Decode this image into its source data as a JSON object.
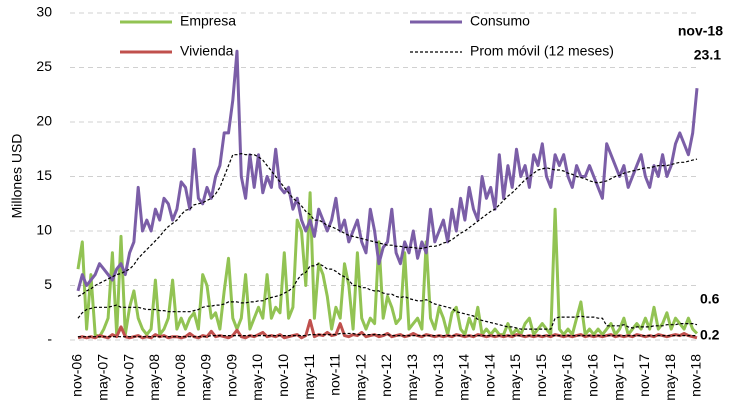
{
  "chart_data": {
    "type": "line",
    "y_label": "Millones USD",
    "categories": [
      "nov-06",
      null,
      null,
      null,
      null,
      null,
      "may-07",
      null,
      null,
      null,
      null,
      null,
      "nov-07",
      null,
      null,
      null,
      null,
      null,
      "may-08",
      null,
      null,
      null,
      null,
      null,
      "nov-08",
      null,
      null,
      null,
      null,
      null,
      "may-09",
      null,
      null,
      null,
      null,
      null,
      "nov-09",
      null,
      null,
      null,
      null,
      null,
      "may-10",
      null,
      null,
      null,
      null,
      null,
      "nov-10",
      null,
      null,
      null,
      null,
      null,
      "may-11",
      null,
      null,
      null,
      null,
      null,
      "nov-11",
      null,
      null,
      null,
      null,
      null,
      "may-12",
      null,
      null,
      null,
      null,
      null,
      "nov-12",
      null,
      null,
      null,
      null,
      null,
      "may-13",
      null,
      null,
      null,
      null,
      null,
      "nov-13",
      null,
      null,
      null,
      null,
      null,
      "may-14",
      null,
      null,
      null,
      null,
      null,
      "nov-14",
      null,
      null,
      null,
      null,
      null,
      "may-15",
      null,
      null,
      null,
      null,
      null,
      "nov-15",
      null,
      null,
      null,
      null,
      null,
      "may-16",
      null,
      null,
      null,
      null,
      null,
      "nov-16",
      null,
      null,
      null,
      null,
      null,
      "may-17",
      null,
      null,
      null,
      null,
      null,
      "nov-17",
      null,
      null,
      null,
      null,
      null,
      "may-18",
      null,
      null,
      null,
      null,
      null,
      "nov-18"
    ],
    "series": [
      {
        "name": "Empresa",
        "color": "#92c353",
        "values": [
          6.5,
          9,
          1,
          6,
          0.5,
          0.3,
          1,
          2,
          8,
          0.5,
          9.5,
          0.5,
          3,
          4.5,
          2,
          1,
          0.5,
          1,
          5.5,
          0.5,
          1,
          2,
          5.5,
          1,
          2,
          1,
          2,
          2.5,
          1,
          6,
          5,
          2,
          2.5,
          1,
          4.5,
          7.5,
          2,
          1,
          2,
          6,
          1,
          2,
          3,
          2,
          6,
          2,
          3,
          2.5,
          8,
          2,
          3,
          11,
          10,
          5,
          13.5,
          2,
          7,
          6,
          4,
          1,
          3,
          2,
          7,
          5,
          1,
          8,
          2,
          1,
          2,
          1.5,
          9,
          2,
          4,
          3,
          1.5,
          2,
          8,
          1,
          1.5,
          2,
          1,
          9,
          2,
          1,
          3,
          2,
          0.5,
          2.5,
          3,
          1,
          0.5,
          2,
          1,
          3,
          0.5,
          1,
          0.5,
          1,
          0.5,
          0.5,
          1.5,
          0.5,
          1,
          0.5,
          1.5,
          2,
          0.5,
          1,
          1.5,
          1,
          0.5,
          12,
          1,
          0.5,
          1,
          0.5,
          2,
          3.5,
          0.5,
          1,
          0.5,
          1,
          0.5,
          1,
          1.5,
          0.5,
          1,
          2,
          0.5,
          1,
          1.5,
          1,
          2,
          1,
          3,
          1,
          1.5,
          2.5,
          1,
          2,
          1.5,
          1,
          2,
          1,
          0.6
        ]
      },
      {
        "name": "Consumo",
        "color": "#7b5ea7",
        "values": [
          4.5,
          6,
          5,
          5.5,
          6,
          7,
          6.5,
          6,
          5.5,
          6.5,
          7,
          6,
          8,
          9,
          14,
          10,
          11,
          10,
          12,
          11,
          13,
          12.5,
          11,
          12,
          14.5,
          14,
          12,
          17.5,
          13,
          12.5,
          14,
          13,
          15,
          16,
          19,
          19,
          22,
          26.5,
          15,
          13,
          17,
          14,
          17,
          13.5,
          15,
          14,
          17.5,
          14,
          13.5,
          14,
          12,
          13,
          11,
          10,
          11,
          9.5,
          12,
          11,
          10,
          11,
          13,
          10,
          11,
          9,
          10,
          11,
          9,
          8,
          12,
          10,
          7,
          8.5,
          9,
          12,
          8,
          7,
          9,
          8,
          10,
          7.5,
          9,
          8,
          12,
          9,
          10,
          11,
          9,
          12,
          10,
          13,
          11,
          14,
          12,
          11,
          15,
          13,
          14,
          12,
          17,
          13,
          16,
          14,
          17.5,
          15,
          16,
          14,
          17,
          16,
          18,
          15,
          14,
          17,
          16,
          17,
          15,
          14,
          16,
          15,
          15,
          16,
          15,
          14,
          13,
          18,
          17,
          16,
          15,
          16,
          14,
          15,
          16,
          17,
          15,
          14,
          16,
          15,
          17,
          15,
          16,
          18,
          19,
          18,
          17,
          19,
          23.1
        ]
      },
      {
        "name": "Vivienda",
        "color": "#c0504d",
        "values": [
          0.2,
          0.3,
          0.2,
          0.3,
          0.2,
          0.4,
          0.3,
          0.2,
          0.5,
          0.3,
          1.2,
          0.3,
          0.2,
          0.3,
          0.4,
          0.2,
          0.3,
          0.2,
          0.5,
          0.3,
          0.4,
          0.2,
          0.3,
          0.3,
          0.2,
          0.3,
          0.6,
          0.3,
          0.2,
          0.4,
          0.3,
          0.8,
          0.3,
          0.4,
          0.3,
          0.2,
          0.4,
          0.9,
          0.3,
          0.2,
          0.4,
          0.3,
          0.5,
          0.7,
          0.3,
          0.4,
          0.3,
          0.5,
          0.2,
          0.3,
          0.4,
          0.5,
          0.2,
          0.4,
          1.8,
          0.3,
          0.5,
          0.4,
          0.7,
          0.4,
          0.5,
          1.5,
          0.4,
          0.3,
          0.5,
          0.4,
          0.7,
          0.3,
          0.4,
          0.5,
          0.3,
          0.4,
          0.6,
          0.3,
          0.4,
          0.5,
          0.3,
          0.4,
          0.6,
          0.4,
          0.3,
          0.5,
          0.4,
          0.3,
          0.4,
          0.3,
          0.4,
          0.3,
          0.5,
          0.4,
          0.3,
          0.4,
          0.3,
          0.5,
          0.4,
          0.3,
          0.4,
          0.3,
          0.4,
          0.3,
          0.4,
          0.3,
          0.5,
          0.4,
          0.3,
          0.4,
          0.3,
          0.4,
          0.3,
          0.4,
          0.3,
          0.5,
          0.4,
          0.3,
          0.4,
          0.3,
          0.4,
          0.5,
          0.3,
          0.4,
          0.3,
          0.4,
          0.3,
          0.4,
          0.5,
          0.3,
          0.4,
          0.3,
          0.4,
          0.3,
          0.5,
          0.4,
          0.3,
          0.4,
          0.3,
          0.5,
          0.4,
          0.3,
          0.4,
          0.5,
          0.4,
          0.6,
          0.4,
          0.3,
          0.2
        ]
      }
    ],
    "moving_average": {
      "name": "Prom móvil  (12 meses)",
      "color": "#000000",
      "series": [
        {
          "values": [
            2,
            2.5,
            2.8,
            2.9,
            3,
            3,
            3,
            3,
            3.1,
            3.2,
            3,
            3,
            3,
            3,
            3,
            2.9,
            2.8,
            2.8,
            2.8,
            2.7,
            2.7,
            2.6,
            2.6,
            2.6,
            2.6,
            2.6,
            2.6,
            2.7,
            2.8,
            3,
            3.1,
            3.1,
            3.2,
            3.2,
            3.3,
            3.5,
            3.5,
            3.5,
            3.4,
            3.4,
            3.5,
            3.5,
            3.6,
            3.6,
            3.8,
            3.9,
            4,
            4.1,
            4.3,
            4.5,
            4.8,
            5.5,
            6,
            6.2,
            6.8,
            6.8,
            7,
            6.8,
            6.5,
            6.5,
            6.3,
            6,
            5.8,
            5.5,
            5,
            5,
            4.8,
            4.8,
            4.6,
            4.5,
            4.5,
            4.3,
            4.2,
            4.2,
            4,
            3.9,
            4,
            3.8,
            3.7,
            3.6,
            3.6,
            3.7,
            3.5,
            3.3,
            3.2,
            3.1,
            3,
            2.9,
            2.6,
            2.5,
            2.4,
            2.3,
            2.2,
            1.9,
            1.8,
            1.7,
            1.6,
            1.5,
            1.4,
            1.3,
            1.2,
            1.2,
            1.1,
            1,
            1,
            1,
            1,
            1,
            1,
            1,
            1,
            2,
            2.1,
            2.1,
            2.1,
            2.1,
            2.1,
            2.2,
            2.1,
            2.1,
            2.1,
            2,
            2,
            1.3,
            1.3,
            1.3,
            1.3,
            1.4,
            1.2,
            1.1,
            1.2,
            1.2,
            1.2,
            1.2,
            1.3,
            1.3,
            1.3,
            1.4,
            1.4,
            1.4,
            1.5,
            1.5,
            1.5,
            1.5,
            1.4
          ]
        },
        {
          "values": [
            4,
            4.2,
            4.5,
            4.7,
            5,
            5.2,
            5.4,
            5.6,
            5.8,
            6,
            6.1,
            6.3,
            6.5,
            6.9,
            7.5,
            7.9,
            8.3,
            8.7,
            9.1,
            9.5,
            10,
            10.4,
            10.7,
            11,
            11.5,
            11.9,
            12,
            12.4,
            12.5,
            12.6,
            12.8,
            13,
            13.4,
            14,
            15,
            16,
            17,
            17,
            17.1,
            17,
            17,
            17,
            16.8,
            16.5,
            16,
            15.5,
            15,
            14.5,
            14,
            13.5,
            13,
            12.7,
            12.3,
            11.8,
            11.5,
            11,
            11,
            10.8,
            10.5,
            10.4,
            10.2,
            10,
            9.8,
            9.6,
            9.5,
            9.4,
            9.3,
            9.2,
            9.1,
            9,
            8.9,
            8.8,
            8.7,
            8.7,
            8.6,
            8.6,
            8.5,
            8.5,
            8.5,
            8.4,
            8.4,
            8.5,
            8.6,
            8.6,
            8.7,
            8.9,
            9,
            9.2,
            9.5,
            9.8,
            10,
            10.3,
            10.6,
            10.9,
            11.2,
            11.5,
            11.8,
            12,
            12.4,
            12.8,
            13.2,
            13.5,
            13.9,
            14.3,
            14.7,
            15,
            15.3,
            15.6,
            15.7,
            15.8,
            15.7,
            15.6,
            15.6,
            15.5,
            15.3,
            15.2,
            15,
            14.9,
            14.8,
            14.6,
            14.5,
            14.4,
            14.5,
            14.6,
            14.8,
            15,
            15.1,
            15.3,
            15.4,
            15.5,
            15.6,
            15.7,
            15.8,
            15.8,
            15.9,
            16,
            16,
            16,
            16.1,
            16.2,
            16.3,
            16.3,
            16.4,
            16.5,
            16.6
          ]
        },
        {
          "values": [
            0.3,
            0.3,
            0.3,
            0.3,
            0.3,
            0.3,
            0.3,
            0.3,
            0.3,
            0.3,
            0.3,
            0.3,
            0.3,
            0.3,
            0.3,
            0.3,
            0.3,
            0.3,
            0.3,
            0.3,
            0.3,
            0.3,
            0.3,
            0.3,
            0.3,
            0.3,
            0.3,
            0.3,
            0.3,
            0.3,
            0.3,
            0.4,
            0.4,
            0.4,
            0.4,
            0.4,
            0.4,
            0.4,
            0.4,
            0.4,
            0.4,
            0.4,
            0.4,
            0.4,
            0.4,
            0.4,
            0.4,
            0.4,
            0.4,
            0.4,
            0.4,
            0.4,
            0.4,
            0.4,
            0.5,
            0.5,
            0.5,
            0.5,
            0.5,
            0.5,
            0.5,
            0.6,
            0.6,
            0.6,
            0.6,
            0.5,
            0.5,
            0.5,
            0.5,
            0.5,
            0.5,
            0.5,
            0.5,
            0.4,
            0.4,
            0.4,
            0.4,
            0.4,
            0.4,
            0.4,
            0.4,
            0.4,
            0.4,
            0.4,
            0.4,
            0.4,
            0.4,
            0.4,
            0.4,
            0.4,
            0.4,
            0.4,
            0.4,
            0.4,
            0.4,
            0.4,
            0.4,
            0.4,
            0.4,
            0.4,
            0.4,
            0.4,
            0.4,
            0.4,
            0.4,
            0.4,
            0.4,
            0.4,
            0.4,
            0.4,
            0.4,
            0.4,
            0.4,
            0.4,
            0.4,
            0.4,
            0.4,
            0.4,
            0.4,
            0.4,
            0.4,
            0.4,
            0.4,
            0.4,
            0.4,
            0.4,
            0.4,
            0.4,
            0.4,
            0.4,
            0.4,
            0.4,
            0.4,
            0.4,
            0.4,
            0.4,
            0.4,
            0.4,
            0.4,
            0.4,
            0.4,
            0.4,
            0.4,
            0.4,
            0.4
          ]
        }
      ]
    },
    "annotations": [
      "nov-18",
      "23.1",
      "0.6",
      "0.2"
    ],
    "ylim": [
      0,
      30
    ],
    "yticks": [
      {
        "value": 0,
        "label": "-"
      },
      5,
      10,
      15,
      20,
      25,
      30
    ],
    "grid": true
  }
}
